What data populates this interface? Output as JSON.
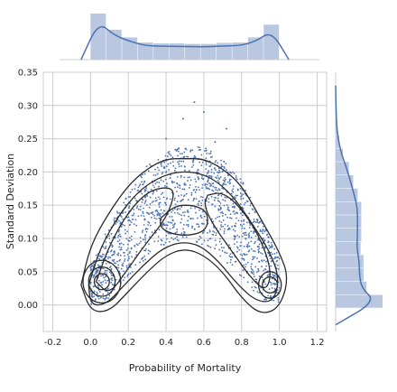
{
  "chart_data": {
    "type": "scatter",
    "title": "",
    "xlabel": "Probability of Mortality",
    "ylabel": "Standard Deviation",
    "xlim": [
      -0.25,
      1.25
    ],
    "ylim": [
      -0.04,
      0.35
    ],
    "x_ticks": [
      -0.2,
      0.0,
      0.2,
      0.4,
      0.6,
      0.8,
      1.0,
      1.2
    ],
    "y_ticks": [
      0.0,
      0.05,
      0.1,
      0.15,
      0.2,
      0.25,
      0.3,
      0.35
    ],
    "x_tick_labels": [
      "-0.2",
      "0.0",
      "0.2",
      "0.4",
      "0.6",
      "0.8",
      "1.0",
      "1.2"
    ],
    "y_tick_labels": [
      "0.00",
      "0.05",
      "0.10",
      "0.15",
      "0.20",
      "0.25",
      "0.30",
      "0.35"
    ],
    "grid": true,
    "legend": "none",
    "colors": {
      "points": "#4c72b0",
      "contours": "#2b2b2b",
      "hist": "#b9c8e0",
      "kde": "#4c72b0",
      "grid": "#cccccc"
    },
    "scatter_description": "about 1500 points forming an inverted-U band over x in 0.0-1.0",
    "scatter_band": {
      "x_range": [
        0.0,
        1.0
      ],
      "upper_envelope": [
        [
          0.0,
          0.06
        ],
        [
          0.1,
          0.12
        ],
        [
          0.2,
          0.17
        ],
        [
          0.3,
          0.21
        ],
        [
          0.4,
          0.23
        ],
        [
          0.5,
          0.24
        ],
        [
          0.6,
          0.24
        ],
        [
          0.7,
          0.22
        ],
        [
          0.8,
          0.19
        ],
        [
          0.9,
          0.13
        ],
        [
          1.0,
          0.07
        ]
      ],
      "lower_envelope": [
        [
          0.0,
          0.0
        ],
        [
          0.1,
          0.01
        ],
        [
          0.2,
          0.04
        ],
        [
          0.3,
          0.07
        ],
        [
          0.4,
          0.09
        ],
        [
          0.5,
          0.1
        ],
        [
          0.6,
          0.09
        ],
        [
          0.7,
          0.07
        ],
        [
          0.8,
          0.04
        ],
        [
          0.9,
          0.01
        ],
        [
          1.0,
          0.0
        ]
      ],
      "outliers": [
        [
          0.55,
          0.305
        ],
        [
          0.6,
          0.29
        ],
        [
          0.49,
          0.28
        ],
        [
          0.72,
          0.265
        ],
        [
          0.4,
          0.25
        ],
        [
          0.66,
          0.245
        ]
      ]
    },
    "contour_levels": [
      {
        "center": [
          0.06,
          0.035
        ],
        "rx": 0.04,
        "ry": 0.012
      },
      {
        "center": [
          0.06,
          0.035
        ],
        "rx": 0.07,
        "ry": 0.022
      },
      {
        "center": [
          0.06,
          0.035
        ],
        "rx": 0.1,
        "ry": 0.032
      },
      {
        "center": [
          0.95,
          0.03
        ],
        "rx": 0.04,
        "ry": 0.012
      },
      {
        "center": [
          0.95,
          0.03
        ],
        "rx": 0.06,
        "ry": 0.02
      }
    ],
    "contour_arcs": [
      [
        [
          -0.05,
          0.03
        ],
        [
          0.0,
          0.09
        ],
        [
          0.1,
          0.14
        ],
        [
          0.2,
          0.18
        ],
        [
          0.3,
          0.205
        ],
        [
          0.4,
          0.22
        ],
        [
          0.5,
          0.22
        ],
        [
          0.6,
          0.22
        ],
        [
          0.7,
          0.205
        ],
        [
          0.8,
          0.18
        ],
        [
          0.9,
          0.13
        ],
        [
          1.0,
          0.08
        ],
        [
          1.05,
          0.04
        ],
        [
          1.0,
          -0.005
        ],
        [
          0.9,
          -0.015
        ],
        [
          0.8,
          0.01
        ],
        [
          0.7,
          0.05
        ],
        [
          0.6,
          0.075
        ],
        [
          0.5,
          0.085
        ],
        [
          0.4,
          0.075
        ],
        [
          0.3,
          0.05
        ],
        [
          0.2,
          0.02
        ],
        [
          0.1,
          -0.01
        ],
        [
          0.0,
          -0.01
        ],
        [
          -0.05,
          0.03
        ]
      ],
      [
        [
          -0.01,
          0.03
        ],
        [
          0.05,
          0.085
        ],
        [
          0.15,
          0.135
        ],
        [
          0.25,
          0.17
        ],
        [
          0.35,
          0.19
        ],
        [
          0.45,
          0.2
        ],
        [
          0.55,
          0.2
        ],
        [
          0.65,
          0.19
        ],
        [
          0.75,
          0.165
        ],
        [
          0.85,
          0.125
        ],
        [
          0.95,
          0.08
        ],
        [
          1.0,
          0.04
        ],
        [
          0.97,
          0.005
        ],
        [
          0.88,
          0.005
        ],
        [
          0.78,
          0.03
        ],
        [
          0.68,
          0.065
        ],
        [
          0.58,
          0.09
        ],
        [
          0.48,
          0.095
        ],
        [
          0.38,
          0.085
        ],
        [
          0.28,
          0.06
        ],
        [
          0.18,
          0.03
        ],
        [
          0.08,
          0.0
        ],
        [
          0.0,
          0.0
        ],
        [
          -0.01,
          0.03
        ]
      ],
      [
        [
          0.03,
          0.035
        ],
        [
          0.1,
          0.09
        ],
        [
          0.2,
          0.14
        ],
        [
          0.3,
          0.17
        ],
        [
          0.4,
          0.178
        ],
        [
          0.45,
          0.17
        ],
        [
          0.4,
          0.13
        ],
        [
          0.3,
          0.095
        ],
        [
          0.2,
          0.055
        ],
        [
          0.1,
          0.015
        ],
        [
          0.03,
          0.035
        ]
      ],
      [
        [
          0.62,
          0.165
        ],
        [
          0.7,
          0.17
        ],
        [
          0.8,
          0.145
        ],
        [
          0.9,
          0.1
        ],
        [
          0.96,
          0.05
        ],
        [
          0.93,
          0.02
        ],
        [
          0.85,
          0.04
        ],
        [
          0.75,
          0.08
        ],
        [
          0.65,
          0.12
        ],
        [
          0.6,
          0.15
        ],
        [
          0.62,
          0.165
        ]
      ],
      [
        [
          0.37,
          0.13
        ],
        [
          0.45,
          0.15
        ],
        [
          0.55,
          0.15
        ],
        [
          0.62,
          0.14
        ],
        [
          0.62,
          0.115
        ],
        [
          0.55,
          0.105
        ],
        [
          0.45,
          0.105
        ],
        [
          0.37,
          0.115
        ],
        [
          0.37,
          0.13
        ]
      ]
    ],
    "marginal_x": {
      "bin_edges": [
        0.0,
        0.0833,
        0.1667,
        0.25,
        0.3333,
        0.4167,
        0.5,
        0.5833,
        0.6667,
        0.75,
        0.8333,
        0.9167,
        1.0
      ],
      "densities": [
        2.7,
        1.75,
        1.3,
        1.0,
        0.95,
        0.95,
        0.92,
        0.92,
        0.98,
        1.0,
        1.3,
        2.05
      ]
    },
    "marginal_y": {
      "bin_edges": [
        -0.005,
        0.015,
        0.035,
        0.055,
        0.075,
        0.095,
        0.115,
        0.135,
        0.155,
        0.175,
        0.195,
        0.215,
        0.235,
        0.255,
        0.275,
        0.295,
        0.315
      ],
      "densities": [
        3.2,
        2.1,
        1.9,
        1.9,
        1.7,
        1.75,
        1.75,
        1.75,
        1.5,
        1.2,
        0.9,
        0.5,
        0.25,
        0.1,
        0.05,
        0.02
      ]
    }
  }
}
